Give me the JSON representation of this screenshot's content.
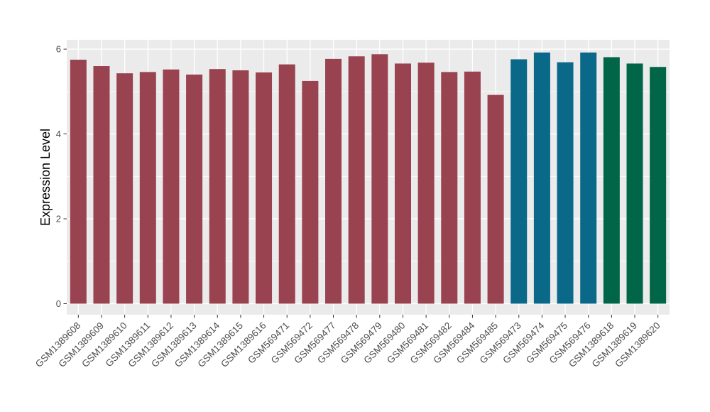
{
  "figure": {
    "background": "#FFFFFF"
  },
  "chart_data": {
    "type": "bar",
    "title": "",
    "xlabel": "",
    "ylabel": "Expression Level",
    "categories": [
      "GSM1389608",
      "GSM1389609",
      "GSM1389610",
      "GSM1389611",
      "GSM1389612",
      "GSM1389613",
      "GSM1389614",
      "GSM1389615",
      "GSM1389616",
      "GSM569471",
      "GSM569472",
      "GSM569477",
      "GSM569478",
      "GSM569479",
      "GSM569480",
      "GSM569481",
      "GSM569482",
      "GSM569484",
      "GSM569485",
      "GSM569473",
      "GSM569474",
      "GSM569475",
      "GSM569476",
      "GSM1389618",
      "GSM1389619",
      "GSM1389620"
    ],
    "values": [
      5.75,
      5.6,
      5.43,
      5.46,
      5.52,
      5.4,
      5.53,
      5.5,
      5.45,
      5.64,
      5.25,
      5.77,
      5.83,
      5.88,
      5.66,
      5.68,
      5.46,
      5.47,
      4.92,
      5.76,
      5.92,
      5.69,
      5.92,
      5.81,
      5.66,
      5.58
    ],
    "bar_colors": [
      "#994250",
      "#994250",
      "#994250",
      "#994250",
      "#994250",
      "#994250",
      "#994250",
      "#994250",
      "#994250",
      "#994250",
      "#994250",
      "#994250",
      "#994250",
      "#994250",
      "#994250",
      "#994250",
      "#994250",
      "#994250",
      "#994250",
      "#0A6888",
      "#0A6888",
      "#0A6888",
      "#0A6888",
      "#006647",
      "#006647",
      "#006647"
    ],
    "color_groups": [
      {
        "color": "#994250",
        "bar_count": 19
      },
      {
        "color": "#0A6888",
        "bar_count": 4
      },
      {
        "color": "#006647",
        "bar_count": 3
      }
    ],
    "yticks": [
      0,
      2,
      4,
      6
    ],
    "yminorticks": [
      1,
      3,
      5
    ],
    "ylim": [
      -0.26,
      6.22
    ],
    "grid": "on",
    "legend": "none",
    "panel_background": "#EBEBEB",
    "grid_color": "#FFFFFF",
    "tick_mark_color": "#333333",
    "tick_label_color": "#4D4D4D",
    "axis_title_color": "#000000"
  }
}
